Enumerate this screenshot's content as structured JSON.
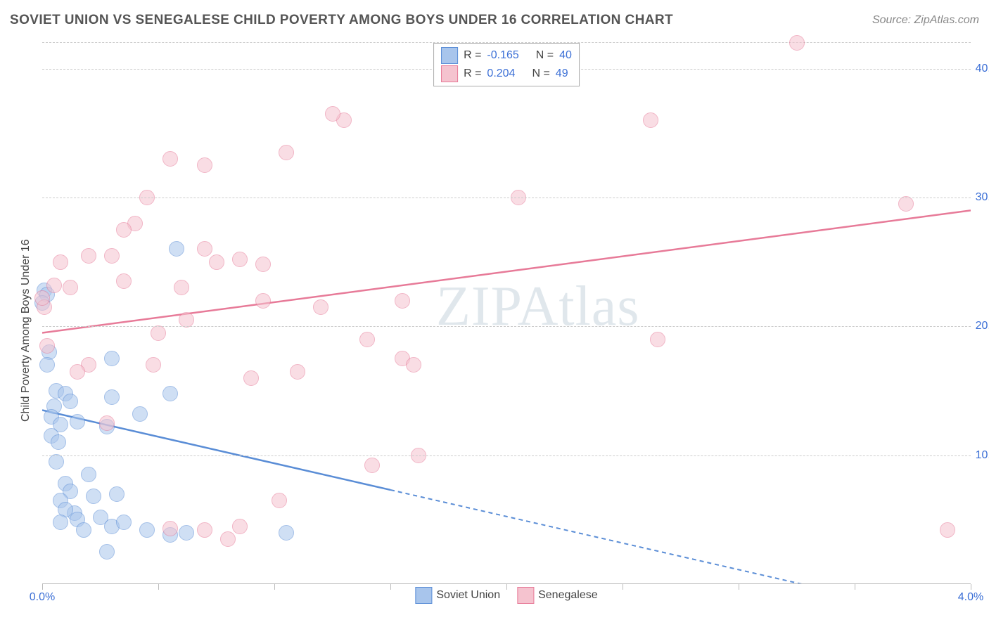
{
  "title": "SOVIET UNION VS SENEGALESE CHILD POVERTY AMONG BOYS UNDER 16 CORRELATION CHART",
  "source_label": "Source: ZipAtlas.com",
  "watermark": "ZIPAtlas",
  "chart": {
    "type": "scatter",
    "y_axis_label": "Child Poverty Among Boys Under 16",
    "xlim": [
      0.0,
      4.0
    ],
    "ylim": [
      0.0,
      42.0
    ],
    "x_ticks": [
      0.0,
      0.5,
      1.0,
      1.5,
      2.0,
      2.5,
      3.0,
      3.5,
      4.0
    ],
    "x_tick_labels": {
      "0": "0.0%",
      "4": "4.0%"
    },
    "y_grid": [
      10.0,
      20.0,
      30.0,
      40.0
    ],
    "y_tick_labels": {
      "10": "10.0%",
      "20": "20.0%",
      "30": "30.0%",
      "40": "40.0%"
    },
    "background_color": "#ffffff",
    "grid_color": "#cccccc",
    "axis_label_color": "#3b6fd6",
    "point_radius": 10,
    "point_opacity": 0.55,
    "series": [
      {
        "name": "Soviet Union",
        "fill": "#a8c5ec",
        "stroke": "#5a8dd6",
        "points": [
          [
            0.01,
            22.8
          ],
          [
            0.02,
            22.5
          ],
          [
            0.0,
            21.8
          ],
          [
            0.03,
            18.0
          ],
          [
            0.02,
            17.0
          ],
          [
            0.06,
            15.0
          ],
          [
            0.1,
            14.8
          ],
          [
            0.12,
            14.2
          ],
          [
            0.05,
            13.8
          ],
          [
            0.04,
            13.0
          ],
          [
            0.08,
            12.4
          ],
          [
            0.15,
            12.6
          ],
          [
            0.3,
            14.5
          ],
          [
            0.28,
            12.2
          ],
          [
            0.42,
            13.2
          ],
          [
            0.3,
            17.5
          ],
          [
            0.55,
            14.8
          ],
          [
            0.58,
            26.0
          ],
          [
            0.04,
            11.5
          ],
          [
            0.07,
            11.0
          ],
          [
            0.06,
            9.5
          ],
          [
            0.1,
            7.8
          ],
          [
            0.12,
            7.2
          ],
          [
            0.08,
            6.5
          ],
          [
            0.14,
            5.5
          ],
          [
            0.15,
            5.0
          ],
          [
            0.22,
            6.8
          ],
          [
            0.25,
            5.2
          ],
          [
            0.3,
            4.5
          ],
          [
            0.35,
            4.8
          ],
          [
            0.32,
            7.0
          ],
          [
            0.45,
            4.2
          ],
          [
            0.55,
            3.8
          ],
          [
            0.62,
            4.0
          ],
          [
            0.18,
            4.2
          ],
          [
            0.2,
            8.5
          ],
          [
            0.1,
            5.8
          ],
          [
            0.08,
            4.8
          ],
          [
            0.28,
            2.5
          ],
          [
            1.05,
            4.0
          ]
        ],
        "trend": {
          "y_at_x0": 13.5,
          "y_at_x4": -3.0,
          "solid_until_x": 1.5
        },
        "stats": {
          "R": "-0.165",
          "N": "40"
        }
      },
      {
        "name": "Senegalese",
        "fill": "#f5c3cf",
        "stroke": "#e77a98",
        "points": [
          [
            0.01,
            21.5
          ],
          [
            0.0,
            22.2
          ],
          [
            0.08,
            25.0
          ],
          [
            0.12,
            23.0
          ],
          [
            0.2,
            25.5
          ],
          [
            0.3,
            25.5
          ],
          [
            0.35,
            23.5
          ],
          [
            0.4,
            28.0
          ],
          [
            0.45,
            30.0
          ],
          [
            0.48,
            17.0
          ],
          [
            0.55,
            33.0
          ],
          [
            0.6,
            23.0
          ],
          [
            0.62,
            20.5
          ],
          [
            0.7,
            32.5
          ],
          [
            0.75,
            25.0
          ],
          [
            0.85,
            25.2
          ],
          [
            0.9,
            16.0
          ],
          [
            0.95,
            22.0
          ],
          [
            1.05,
            33.5
          ],
          [
            1.1,
            16.5
          ],
          [
            1.3,
            36.0
          ],
          [
            1.02,
            6.5
          ],
          [
            0.85,
            4.5
          ],
          [
            0.8,
            3.5
          ],
          [
            0.7,
            4.2
          ],
          [
            0.55,
            4.3
          ],
          [
            0.28,
            12.5
          ],
          [
            0.2,
            17.0
          ],
          [
            0.15,
            16.5
          ],
          [
            0.02,
            18.5
          ],
          [
            1.4,
            19.0
          ],
          [
            1.55,
            22.0
          ],
          [
            1.42,
            9.2
          ],
          [
            1.55,
            17.5
          ],
          [
            1.6,
            17.0
          ],
          [
            1.62,
            10.0
          ],
          [
            2.05,
            30.0
          ],
          [
            2.62,
            36.0
          ],
          [
            2.65,
            19.0
          ],
          [
            3.25,
            42.0
          ],
          [
            3.72,
            29.5
          ],
          [
            3.9,
            4.2
          ],
          [
            1.2,
            21.5
          ],
          [
            0.95,
            24.8
          ],
          [
            0.35,
            27.5
          ],
          [
            0.5,
            19.5
          ],
          [
            0.05,
            23.2
          ],
          [
            0.7,
            26.0
          ],
          [
            1.25,
            36.5
          ]
        ],
        "trend": {
          "y_at_x0": 19.5,
          "y_at_x4": 29.0,
          "solid_until_x": 4.0
        },
        "stats": {
          "R": "0.204",
          "N": "49"
        }
      }
    ]
  },
  "legend_top_r_label": "R =",
  "legend_top_n_label": "N ="
}
